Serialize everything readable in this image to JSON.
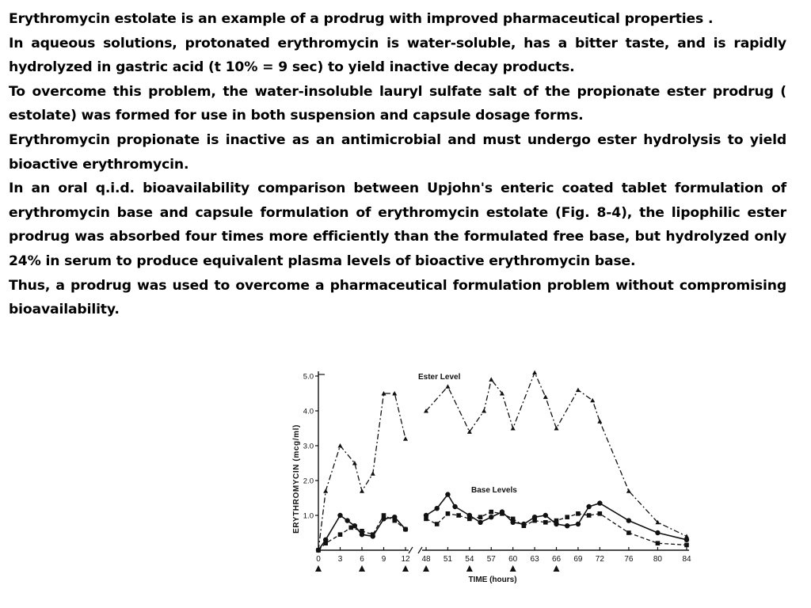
{
  "paragraphs": [
    "Erythromycin estolate is an example of a prodrug with improved pharmaceutical properties .",
    "In aqueous  solutions, protonated erythromycin is water-soluble, has a bitter taste, and is rapidly hydrolyzed in gastric acid (t 10% = 9 sec) to yield inactive decay products.",
    "To overcome this problem, the water-insoluble lauryl sulfate salt of the propionate ester prodrug ( estolate) was formed for use in both suspension and capsule dosage forms.",
    "Erythromycin propionate is inactive as an antimicrobial and must undergo ester hydrolysis to yield bioactive erythromycin.",
    "In an oral q.i.d. bioavailability comparison between Upjohn's enteric coated tablet formulation of erythromycin base and capsule formulation of erythromycin estolate (Fig. 8-4), the lipophilic ester prodrug was absorbed four times more efficiently than the formulated free base, but hydrolyzed only 24% in serum to produce equivalent plasma levels of bioactive erythromycin base.",
    "Thus, a prodrug was used to overcome a pharmaceutical formulation problem without compromising bioavailability."
  ],
  "chart_data": {
    "type": "line",
    "xlabel": "TIME (hours)",
    "ylabel": "ERYTHROMYCIN (mcg/ml)",
    "x_ticks": [
      "0",
      "3",
      "6",
      "9",
      "12",
      "48",
      "51",
      "54",
      "57",
      "60",
      "63",
      "66",
      "69",
      "72",
      "76",
      "80",
      "84"
    ],
    "y_ticks": [
      "1.0",
      "2.0",
      "3.0",
      "4.0",
      "5.0"
    ],
    "ylim": [
      0,
      5
    ],
    "dose_times": [
      0,
      6,
      12,
      48,
      54,
      60,
      66
    ],
    "annotations": [
      "Ester Level",
      "Base Levels"
    ],
    "series": [
      {
        "style": "dash-dot",
        "segments": [
          [
            [
              0,
              0
            ],
            [
              1,
              1.7
            ],
            [
              3,
              3.0
            ],
            [
              5,
              2.5
            ],
            [
              6,
              1.7
            ],
            [
              7.5,
              2.2
            ],
            [
              9,
              4.5
            ],
            [
              10.5,
              4.5
            ],
            [
              12,
              3.2
            ]
          ],
          [
            [
              48,
              4.0
            ],
            [
              51,
              4.7
            ],
            [
              54,
              3.4
            ],
            [
              56,
              4.0
            ],
            [
              57,
              4.9
            ],
            [
              58.5,
              4.5
            ],
            [
              60,
              3.5
            ],
            [
              63,
              5.1
            ],
            [
              64.5,
              4.4
            ],
            [
              66,
              3.5
            ],
            [
              69,
              4.6
            ],
            [
              71,
              4.3
            ],
            [
              72,
              3.7
            ],
            [
              76,
              1.7
            ],
            [
              80,
              0.8
            ],
            [
              84,
              0.4
            ]
          ]
        ]
      },
      {
        "style": "solid",
        "segments": [
          [
            [
              0,
              0
            ],
            [
              1,
              0.3
            ],
            [
              3,
              1.0
            ],
            [
              4,
              0.85
            ],
            [
              5,
              0.7
            ],
            [
              6,
              0.45
            ],
            [
              7.5,
              0.4
            ],
            [
              9,
              0.9
            ],
            [
              10.5,
              0.95
            ],
            [
              12,
              0.6
            ]
          ],
          [
            [
              48,
              1.0
            ],
            [
              49.5,
              1.2
            ],
            [
              51,
              1.6
            ],
            [
              52,
              1.25
            ],
            [
              54,
              1.0
            ],
            [
              55.5,
              0.8
            ],
            [
              57,
              0.95
            ],
            [
              58.5,
              1.1
            ],
            [
              60,
              0.8
            ],
            [
              61.5,
              0.75
            ],
            [
              63,
              0.95
            ],
            [
              64.5,
              1.0
            ],
            [
              66,
              0.75
            ],
            [
              67.5,
              0.7
            ],
            [
              69,
              0.75
            ],
            [
              70.5,
              1.25
            ],
            [
              72,
              1.35
            ],
            [
              76,
              0.85
            ],
            [
              80,
              0.5
            ],
            [
              84,
              0.3
            ]
          ]
        ]
      },
      {
        "style": "dashed",
        "segments": [
          [
            [
              0,
              0
            ],
            [
              1,
              0.2
            ],
            [
              3,
              0.45
            ],
            [
              4.5,
              0.65
            ],
            [
              6,
              0.55
            ],
            [
              7.5,
              0.45
            ],
            [
              9,
              1.0
            ],
            [
              10.5,
              0.85
            ],
            [
              12,
              0.6
            ]
          ],
          [
            [
              48,
              0.9
            ],
            [
              49.5,
              0.75
            ],
            [
              51,
              1.05
            ],
            [
              52.5,
              1.0
            ],
            [
              54,
              0.9
            ],
            [
              55.5,
              0.95
            ],
            [
              57,
              1.1
            ],
            [
              58.5,
              1.05
            ],
            [
              60,
              0.9
            ],
            [
              61.5,
              0.7
            ],
            [
              63,
              0.85
            ],
            [
              64.5,
              0.8
            ],
            [
              66,
              0.85
            ],
            [
              67.5,
              0.95
            ],
            [
              69,
              1.05
            ],
            [
              70.5,
              1.0
            ],
            [
              72,
              1.05
            ],
            [
              76,
              0.5
            ],
            [
              80,
              0.2
            ],
            [
              84,
              0.15
            ]
          ]
        ]
      }
    ]
  },
  "colors": {
    "ink": "#111111",
    "background": "#ffffff"
  }
}
